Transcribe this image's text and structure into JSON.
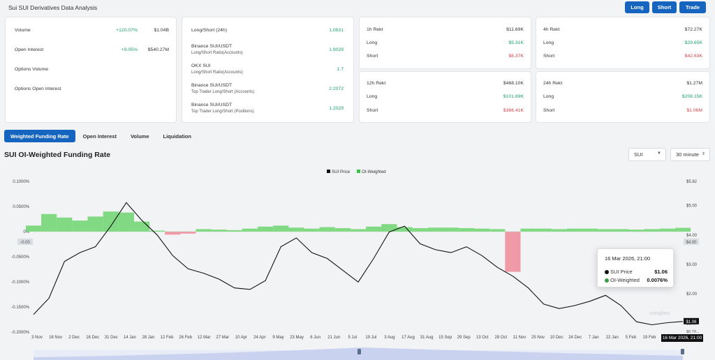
{
  "page": {
    "title": "Sui SUI Derivatives Data Analysis"
  },
  "actions": {
    "long": "Long",
    "short": "Short",
    "trade": "Trade"
  },
  "stats": [
    {
      "label": "Volume",
      "change": "+120.07%",
      "value": "$1.04B"
    },
    {
      "label": "Open Interest",
      "change": "+9.05%",
      "value": "$540.27M"
    },
    {
      "label": "Options Volume",
      "change": "",
      "value": ""
    },
    {
      "label": "Options Open Interest",
      "change": "",
      "value": ""
    }
  ],
  "ratios": [
    {
      "label": "Long/Short (24h)",
      "sub": "",
      "value": "1.0631"
    },
    {
      "label": "Binance SUI/USDT",
      "sub": "Long/Short Ratio(Accounts)",
      "value": "1.9028"
    },
    {
      "label": "OKX SUI",
      "sub": "Long/Short Ratio(Accounts)",
      "value": "1.7"
    },
    {
      "label": "Binance SUI/USDT",
      "sub": "Top Trader Long/Short (Accounts)",
      "value": "2.2072"
    },
    {
      "label": "Binance SUI/USDT",
      "sub": "Top Trader Long/Short (Positions)",
      "value": "1.2029"
    }
  ],
  "rekt": [
    {
      "title": "1h Rekt",
      "total": "$11.69K",
      "long_label": "Long",
      "long": "$5.31K",
      "short_label": "Short",
      "short": "$6.37K"
    },
    {
      "title": "4h Rekt",
      "total": "$72.27K",
      "long_label": "Long",
      "long": "$29.65K",
      "short_label": "Short",
      "short": "$42.63K"
    },
    {
      "title": "12h Rekt",
      "total": "$468.10K",
      "long_label": "Long",
      "long": "$101.69K",
      "short_label": "Short",
      "short": "$366.41K"
    },
    {
      "title": "24h Rekt",
      "total": "$1.27M",
      "long_label": "Long",
      "long": "$208.15K",
      "short_label": "Short",
      "short": "$1.06M"
    }
  ],
  "tabs": [
    "Weighted Funding Rate",
    "Open Interest",
    "Volume",
    "Liquidation"
  ],
  "section": {
    "title": "SUI OI-Weighted Funding Rate",
    "coin_select": "SUI",
    "interval_select": "30 minute"
  },
  "tooltip": {
    "time": "16 Mar 2026, 21:00",
    "price_label": "SUI Price",
    "price_value": "$1.06",
    "oi_label": "OI-Weighted",
    "oi_value": "0.0076%"
  },
  "watermark": "coinglass",
  "colors": {
    "accent": "#1565c0",
    "positive": "#3cc14b",
    "negative": "#e84a5f",
    "price_line": "#111111"
  },
  "chart_data": {
    "type": "line",
    "legend": [
      "SUI Price",
      "OI-Weighted"
    ],
    "legend_position": "top-center",
    "y_left_ticks": [
      "0.1000%",
      "0.0500%",
      "0%",
      "-0.0500%",
      "-0.1000%",
      "-0.1500%",
      "-0.2000%"
    ],
    "y_left_range": [
      -0.2,
      0.1
    ],
    "y_left_marker": "-0.00",
    "y_right_ticks": [
      "$5.82",
      "$5.00",
      "$4.00",
      "$3.00",
      "$2.00",
      "$1.00"
    ],
    "y_right_markers": [
      "$1.06",
      "$0.79...",
      "$4.00"
    ],
    "y_right_range": [
      0.7,
      5.82
    ],
    "x_ticks": [
      "3 Nov",
      "18 Nov",
      "2 Dec",
      "16 Dec",
      "31 Dec",
      "14 Jan",
      "28 Jan",
      "12 Feb",
      "26 Feb",
      "12 Mar",
      "27 Mar",
      "10 Apr",
      "24 Apr",
      "9 May",
      "23 May",
      "6 Jun",
      "21 Jun",
      "5 Jul",
      "19 Jul",
      "3 Aug",
      "17 Aug",
      "31 Aug",
      "15 Sep",
      "29 Sep",
      "13 Oct",
      "28 Oct",
      "11 Nov",
      "25 Nov",
      "10 Dec",
      "24 Dec",
      "7 Jan",
      "22 Jan",
      "5 Feb",
      "19 Feb"
    ],
    "x_highlight": "16 Mar 2026, 21:00",
    "series": [
      {
        "name": "SUI Price",
        "values": [
          1.3,
          1.85,
          3.1,
          3.4,
          3.6,
          4.3,
          5.1,
          4.5,
          4.0,
          3.3,
          2.85,
          2.7,
          2.5,
          2.2,
          2.15,
          2.45,
          3.6,
          3.9,
          3.4,
          3.2,
          2.8,
          2.4,
          3.2,
          4.1,
          4.3,
          3.7,
          3.5,
          3.4,
          3.6,
          3.3,
          2.9,
          2.6,
          2.2,
          1.65,
          1.5,
          1.6,
          1.75,
          1.95,
          1.6,
          1.05,
          0.95,
          1.02,
          1.06
        ]
      },
      {
        "name": "OI-Weighted",
        "values": [
          0.012,
          0.035,
          0.028,
          0.022,
          0.03,
          0.04,
          0.038,
          0.02,
          0.002,
          -0.006,
          -0.004,
          0.005,
          0.004,
          0.003,
          0.006,
          0.01,
          0.012,
          0.008,
          0.006,
          0.009,
          0.007,
          0.005,
          0.01,
          0.015,
          0.009,
          0.007,
          0.008,
          0.008,
          0.007,
          0.006,
          0.005,
          -0.08,
          0.006,
          0.006,
          0.005,
          0.006,
          0.006,
          0.005,
          0.005,
          0.004,
          0.005,
          0.006,
          0.0076
        ]
      }
    ]
  }
}
